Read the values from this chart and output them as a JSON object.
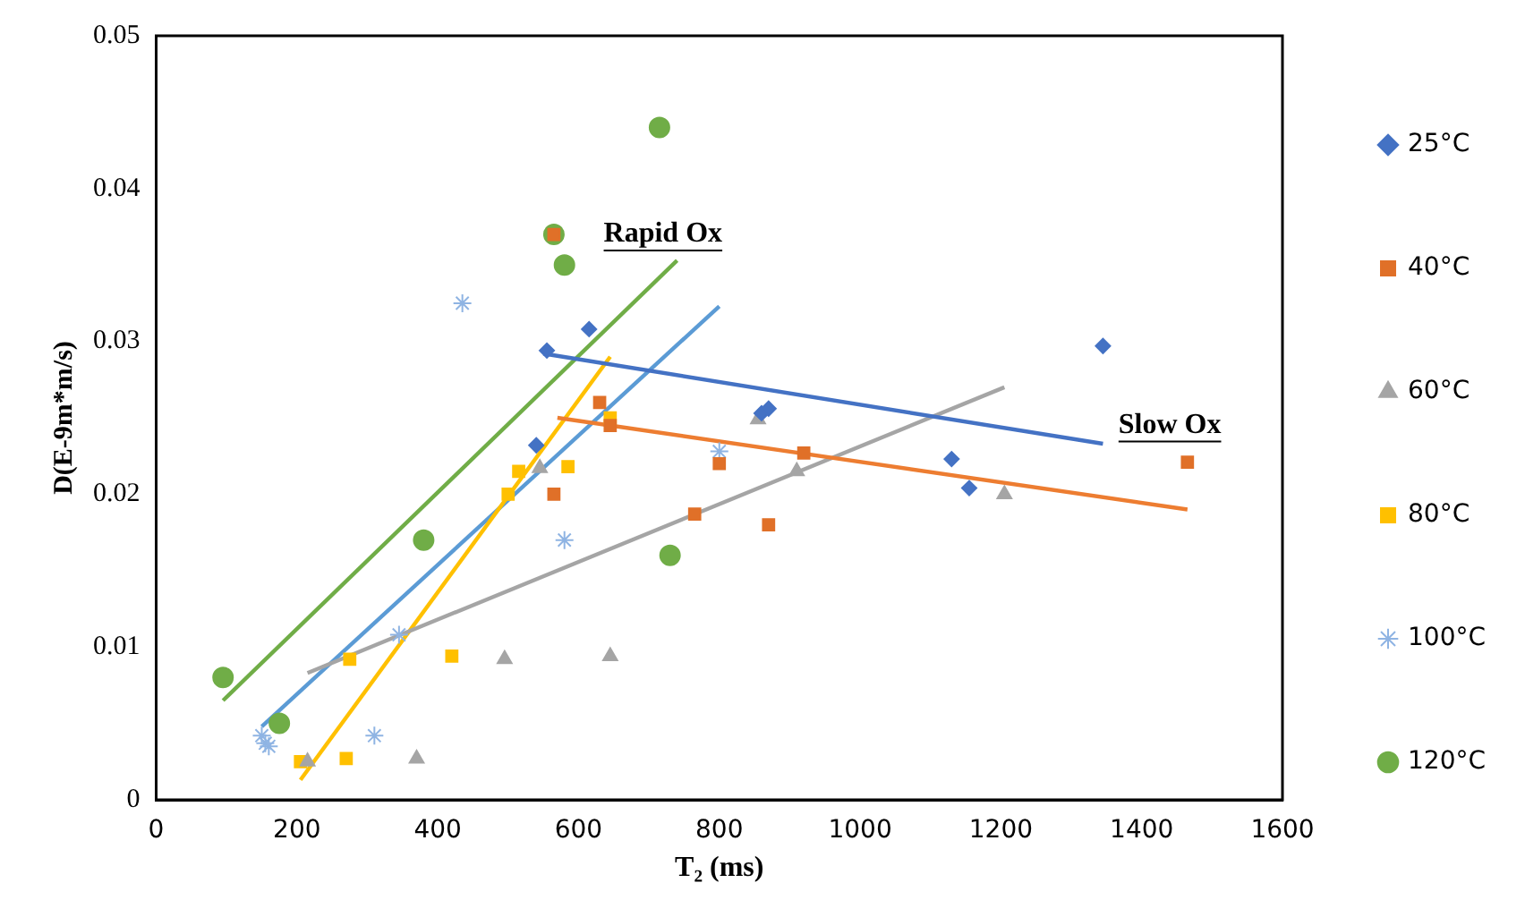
{
  "chart_data": {
    "type": "scatter",
    "xlabel": "T₂ (ms)",
    "ylabel": "D(E-9m*m/s)",
    "xlim": [
      0,
      1600
    ],
    "xticks": [
      0,
      200,
      400,
      600,
      800,
      1000,
      1200,
      1400,
      1600
    ],
    "ylim": [
      0,
      0.05
    ],
    "yticks": [
      0,
      0.01,
      0.02,
      0.03,
      0.04,
      0.05
    ],
    "grid": false,
    "legend": "right",
    "annotations": [
      "Rapid Ox",
      "Slow Ox"
    ],
    "series": [
      {
        "name": "25°C",
        "marker": "diamond",
        "color": "#4472c4",
        "x": [
          540,
          555,
          615,
          860,
          870,
          1130,
          1155,
          1345
        ],
        "values": [
          0.0232,
          0.0294,
          0.0308,
          0.0253,
          0.0256,
          0.0223,
          0.0204,
          0.0297
        ]
      },
      {
        "name": "40°C",
        "marker": "square",
        "color": "#e07028",
        "x": [
          565,
          565,
          630,
          645,
          765,
          800,
          870,
          920,
          1465
        ],
        "values": [
          0.037,
          0.02,
          0.026,
          0.0245,
          0.0187,
          0.022,
          0.018,
          0.0227,
          0.0221
        ]
      },
      {
        "name": "60°C",
        "marker": "triangle",
        "color": "#a5a5a5",
        "x": [
          215,
          370,
          495,
          545,
          645,
          855,
          910,
          1205
        ],
        "values": [
          0.0025,
          0.0027,
          0.0092,
          0.0217,
          0.0094,
          0.0249,
          0.0215,
          0.02
        ]
      },
      {
        "name": "80°C",
        "marker": "square",
        "color": "#ffc000",
        "x": [
          205,
          270,
          275,
          420,
          500,
          515,
          585,
          645
        ],
        "values": [
          0.0025,
          0.0027,
          0.0092,
          0.0094,
          0.02,
          0.0215,
          0.0218,
          0.025
        ]
      },
      {
        "name": "100°C",
        "marker": "cross",
        "color": "#8fb4e3",
        "x": [
          150,
          155,
          160,
          310,
          345,
          435,
          580,
          800
        ],
        "values": [
          0.0042,
          0.0037,
          0.0035,
          0.0042,
          0.0108,
          0.0325,
          0.017,
          0.0228
        ]
      },
      {
        "name": "120°C",
        "marker": "circle",
        "color": "#70ad47",
        "x": [
          95,
          175,
          380,
          565,
          580,
          715,
          730
        ],
        "values": [
          0.008,
          0.005,
          0.017,
          0.037,
          0.035,
          0.044,
          0.016
        ]
      },
      {
        "type": "line",
        "marker": "none",
        "color": "#4472c4",
        "x": [
          550,
          1345
        ],
        "values": [
          0.0292,
          0.0233
        ]
      },
      {
        "type": "line",
        "marker": "none",
        "color": "#ed7d31",
        "x": [
          570,
          1465
        ],
        "values": [
          0.025,
          0.019
        ]
      },
      {
        "type": "line",
        "marker": "none",
        "color": "#a5a5a5",
        "x": [
          215,
          1205
        ],
        "values": [
          0.0083,
          0.027
        ]
      },
      {
        "type": "line",
        "marker": "none",
        "color": "#ffc000",
        "x": [
          205,
          645
        ],
        "values": [
          0.0013,
          0.029
        ]
      },
      {
        "type": "line",
        "marker": "none",
        "color": "#5b9bd5",
        "x": [
          150,
          800
        ],
        "values": [
          0.0048,
          0.0323
        ]
      },
      {
        "type": "line",
        "marker": "none",
        "color": "#70ad47",
        "x": [
          95,
          740
        ],
        "values": [
          0.0065,
          0.0353
        ]
      }
    ]
  }
}
